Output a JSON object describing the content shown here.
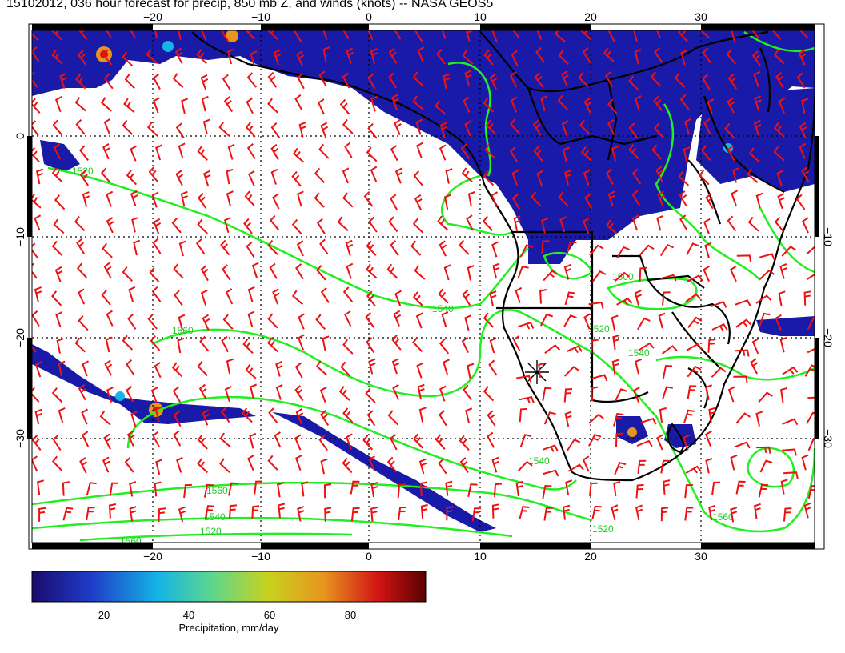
{
  "title": "15102012, 036 hour forecast for precip, 850 mb Z, and winds (knots) -- NASA GEOS5",
  "map": {
    "lon_range": [
      -30,
      40
    ],
    "lat_range": [
      -40,
      10
    ],
    "lon_ticks": [
      -20,
      -10,
      0,
      10,
      20,
      30
    ],
    "lat_ticks": [
      0,
      -10,
      -20,
      -30
    ],
    "lon_labels": [
      "−20",
      "−10",
      "0",
      "10",
      "20",
      "30"
    ],
    "lat_labels": [
      "0",
      "−10",
      "−20",
      "−30"
    ],
    "gridlines": "dotted",
    "contour_labels": [
      "1520",
      "1540",
      "1560",
      "1500",
      "1520",
      "1540",
      "1560",
      "1540",
      "1560",
      "1520",
      "1540",
      "1560",
      "1520"
    ],
    "colors": {
      "coastline": "#000000",
      "contour": "#22ee22",
      "wind_barb": "#ee1111",
      "precip_base": "#1a1aa8"
    }
  },
  "colorbar": {
    "label": "Precipitation, mm/day",
    "tick_labels": [
      "20",
      "40",
      "60",
      "80"
    ],
    "tick_values": [
      20,
      40,
      60,
      80
    ],
    "range": [
      0,
      100
    ],
    "stops": [
      "#1a0a6e",
      "#1f3cc8",
      "#14b4e6",
      "#5fd68c",
      "#c8d21e",
      "#e6961e",
      "#d21414",
      "#5a0000"
    ]
  }
}
